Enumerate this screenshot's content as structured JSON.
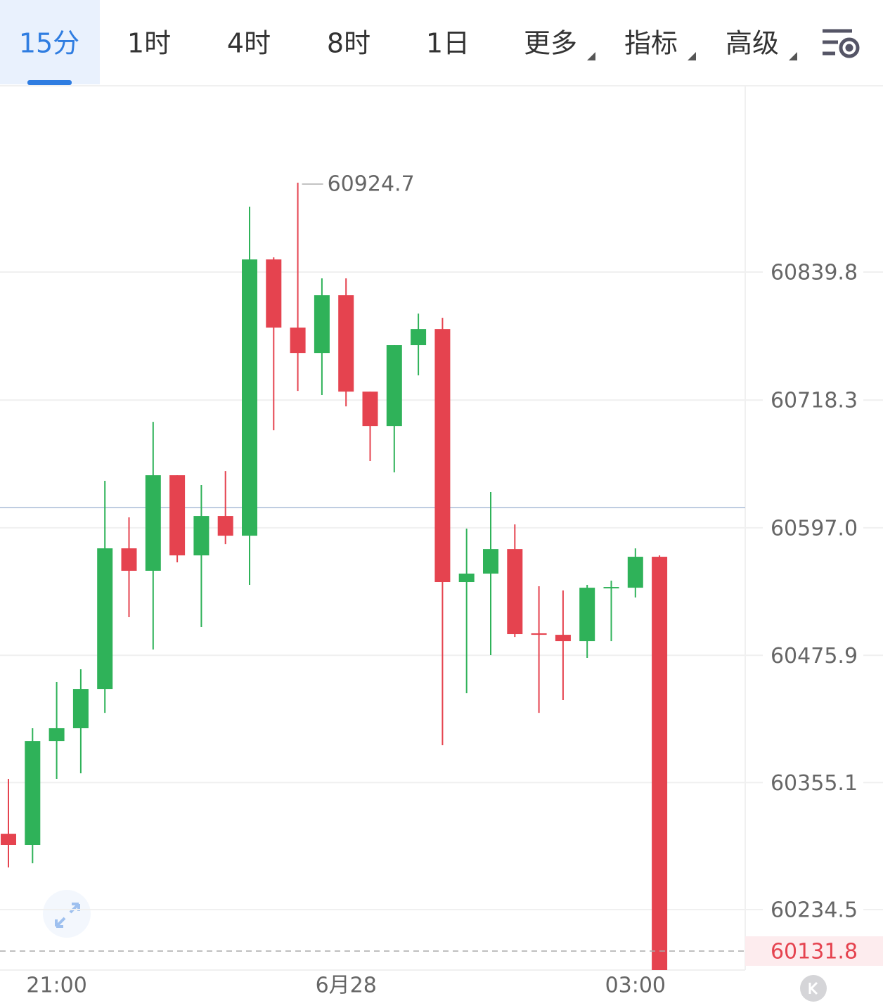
{
  "tabs": [
    "15分",
    "1时",
    "4时",
    "8时",
    "1日",
    "更多",
    "指标",
    "高级"
  ],
  "active_tab": 0,
  "chart_data": {
    "type": "candlestick",
    "categories": [
      null,
      null,
      "21:00",
      null,
      null,
      null,
      null,
      null,
      null,
      null,
      null,
      null,
      null,
      null,
      "6月28",
      null,
      null,
      null,
      null,
      null,
      null,
      null,
      null,
      null,
      null,
      null,
      "03:00",
      null
    ],
    "open": [
      60306.5,
      60295.9,
      60394.6,
      60406.7,
      60444.0,
      60577.5,
      60556.2,
      60646.9,
      60570.8,
      60608.2,
      60589.5,
      60851.8,
      60787.1,
      60763.0,
      60817.8,
      60726.3,
      60693.6,
      60770.4,
      60785.7,
      60545.5,
      60553.5,
      60576.8,
      60496.8,
      60495.4,
      60489.4,
      60539.5,
      60540.1,
      60569.5
    ],
    "high": [
      60358.6,
      60406.7,
      60450.7,
      60462.7,
      60641.6,
      60606.9,
      60697.6,
      60646.9,
      60637.6,
      60650.9,
      60901.9,
      60853.8,
      60924.7,
      60833.8,
      60833.8,
      60726.3,
      60770.4,
      60800.4,
      60796.4,
      60596.2,
      60630.9,
      60600.2,
      60541.5,
      60537.5,
      60542.8,
      60546.8,
      60577.5,
      60570.8
    ],
    "low": [
      60274.5,
      60278.5,
      60358.6,
      60363.9,
      60421.3,
      60512.1,
      60481.4,
      60564.2,
      60502.8,
      60581.5,
      60542.8,
      60689.6,
      60727.0,
      60723.0,
      60712.3,
      60660.3,
      60649.6,
      60741.7,
      60390.6,
      60440.0,
      60476.1,
      60493.4,
      60421.3,
      60433.4,
      60473.4,
      60489.4,
      60530.8,
      60131.8
    ],
    "close": [
      60295.9,
      60394.6,
      60406.7,
      60444.0,
      60577.5,
      60556.2,
      60646.9,
      60570.8,
      60608.2,
      60589.5,
      60851.8,
      60787.1,
      60763.0,
      60817.8,
      60726.3,
      60693.6,
      60770.4,
      60785.7,
      60545.5,
      60553.5,
      60576.8,
      60496.1,
      60495.4,
      60489.4,
      60540.1,
      60540.8,
      60569.5,
      60131.8
    ],
    "up_color": "#2fb259",
    "down_color": "#e5434f",
    "ylim": [
      60177.1,
      61016.7
    ],
    "yticks": [
      60839.8,
      60718.3,
      {
        "value": 60597.0,
        "label": "60597.0"
      },
      60475.9,
      60355.1,
      60234.5
    ],
    "grid": true,
    "reference_line": 60616.2,
    "max_index": 12,
    "last_index": 27
  }
}
